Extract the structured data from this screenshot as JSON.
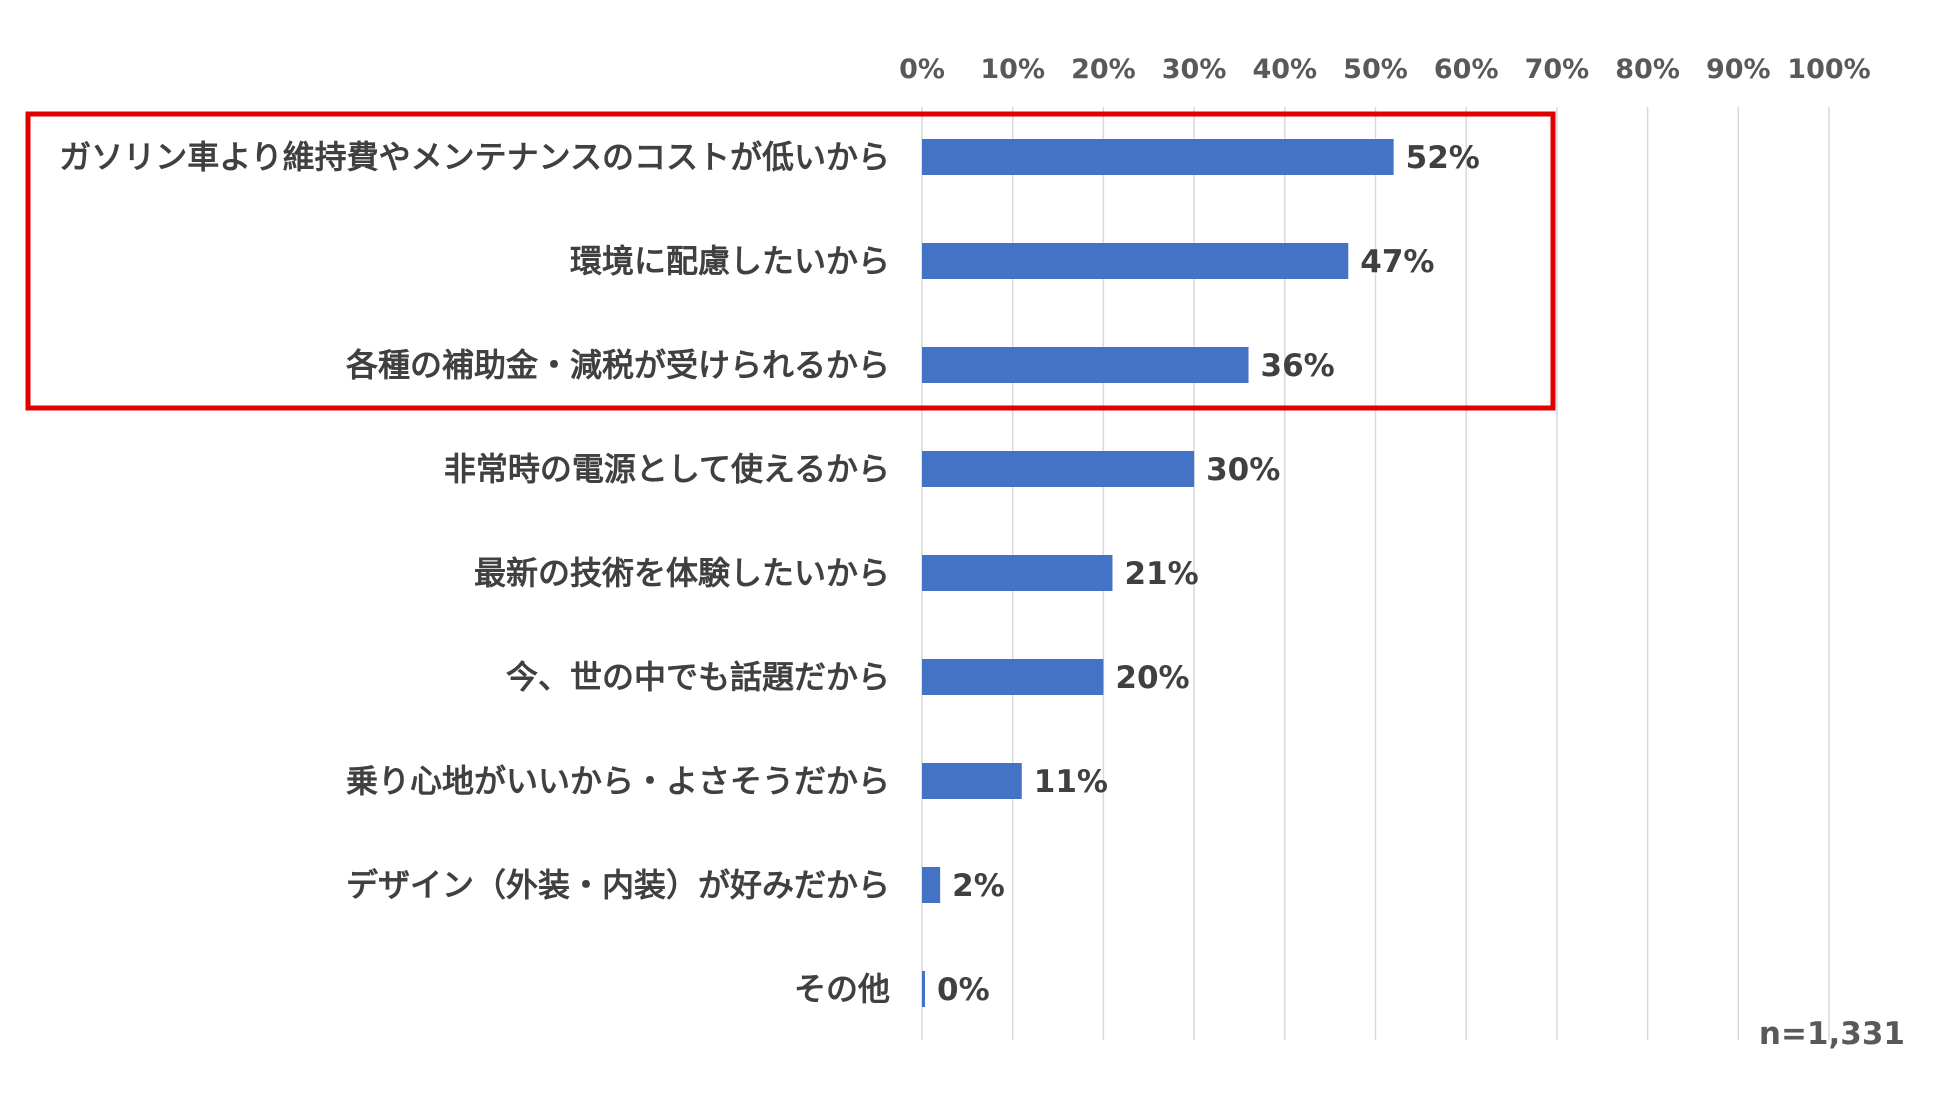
{
  "chart_data": {
    "type": "bar",
    "orientation": "horizontal",
    "categories": [
      "ガソリン車より維持費やメンテナンスのコストが低いから",
      "環境に配慮したいから",
      "各種の補助金・減税が受けられるから",
      "非常時の電源として使えるから",
      "最新の技術を体験したいから",
      "今、世の中でも話題だから",
      "乗り心地がいいから・よさそうだから",
      "デザイン（外装・内装）が好みだから",
      "その他"
    ],
    "values": [
      52,
      47,
      36,
      30,
      21,
      20,
      11,
      2,
      0
    ],
    "value_labels": [
      "52%",
      "47%",
      "36%",
      "30%",
      "21%",
      "20%",
      "11%",
      "2%",
      "0%"
    ],
    "xlim": [
      0,
      100
    ],
    "x_ticks": [
      0,
      10,
      20,
      30,
      40,
      50,
      60,
      70,
      80,
      90,
      100
    ],
    "x_tick_labels": [
      "0%",
      "10%",
      "20%",
      "30%",
      "40%",
      "50%",
      "60%",
      "70%",
      "80%",
      "90%",
      "100%"
    ],
    "axis_position": "top",
    "grid": true,
    "highlighted_categories": [
      0,
      1,
      2
    ],
    "sample_note": "n=1,331",
    "colors": {
      "bar": "#4472C4",
      "gridline": "#D9D9D9",
      "highlight_box": "#E00000"
    }
  }
}
